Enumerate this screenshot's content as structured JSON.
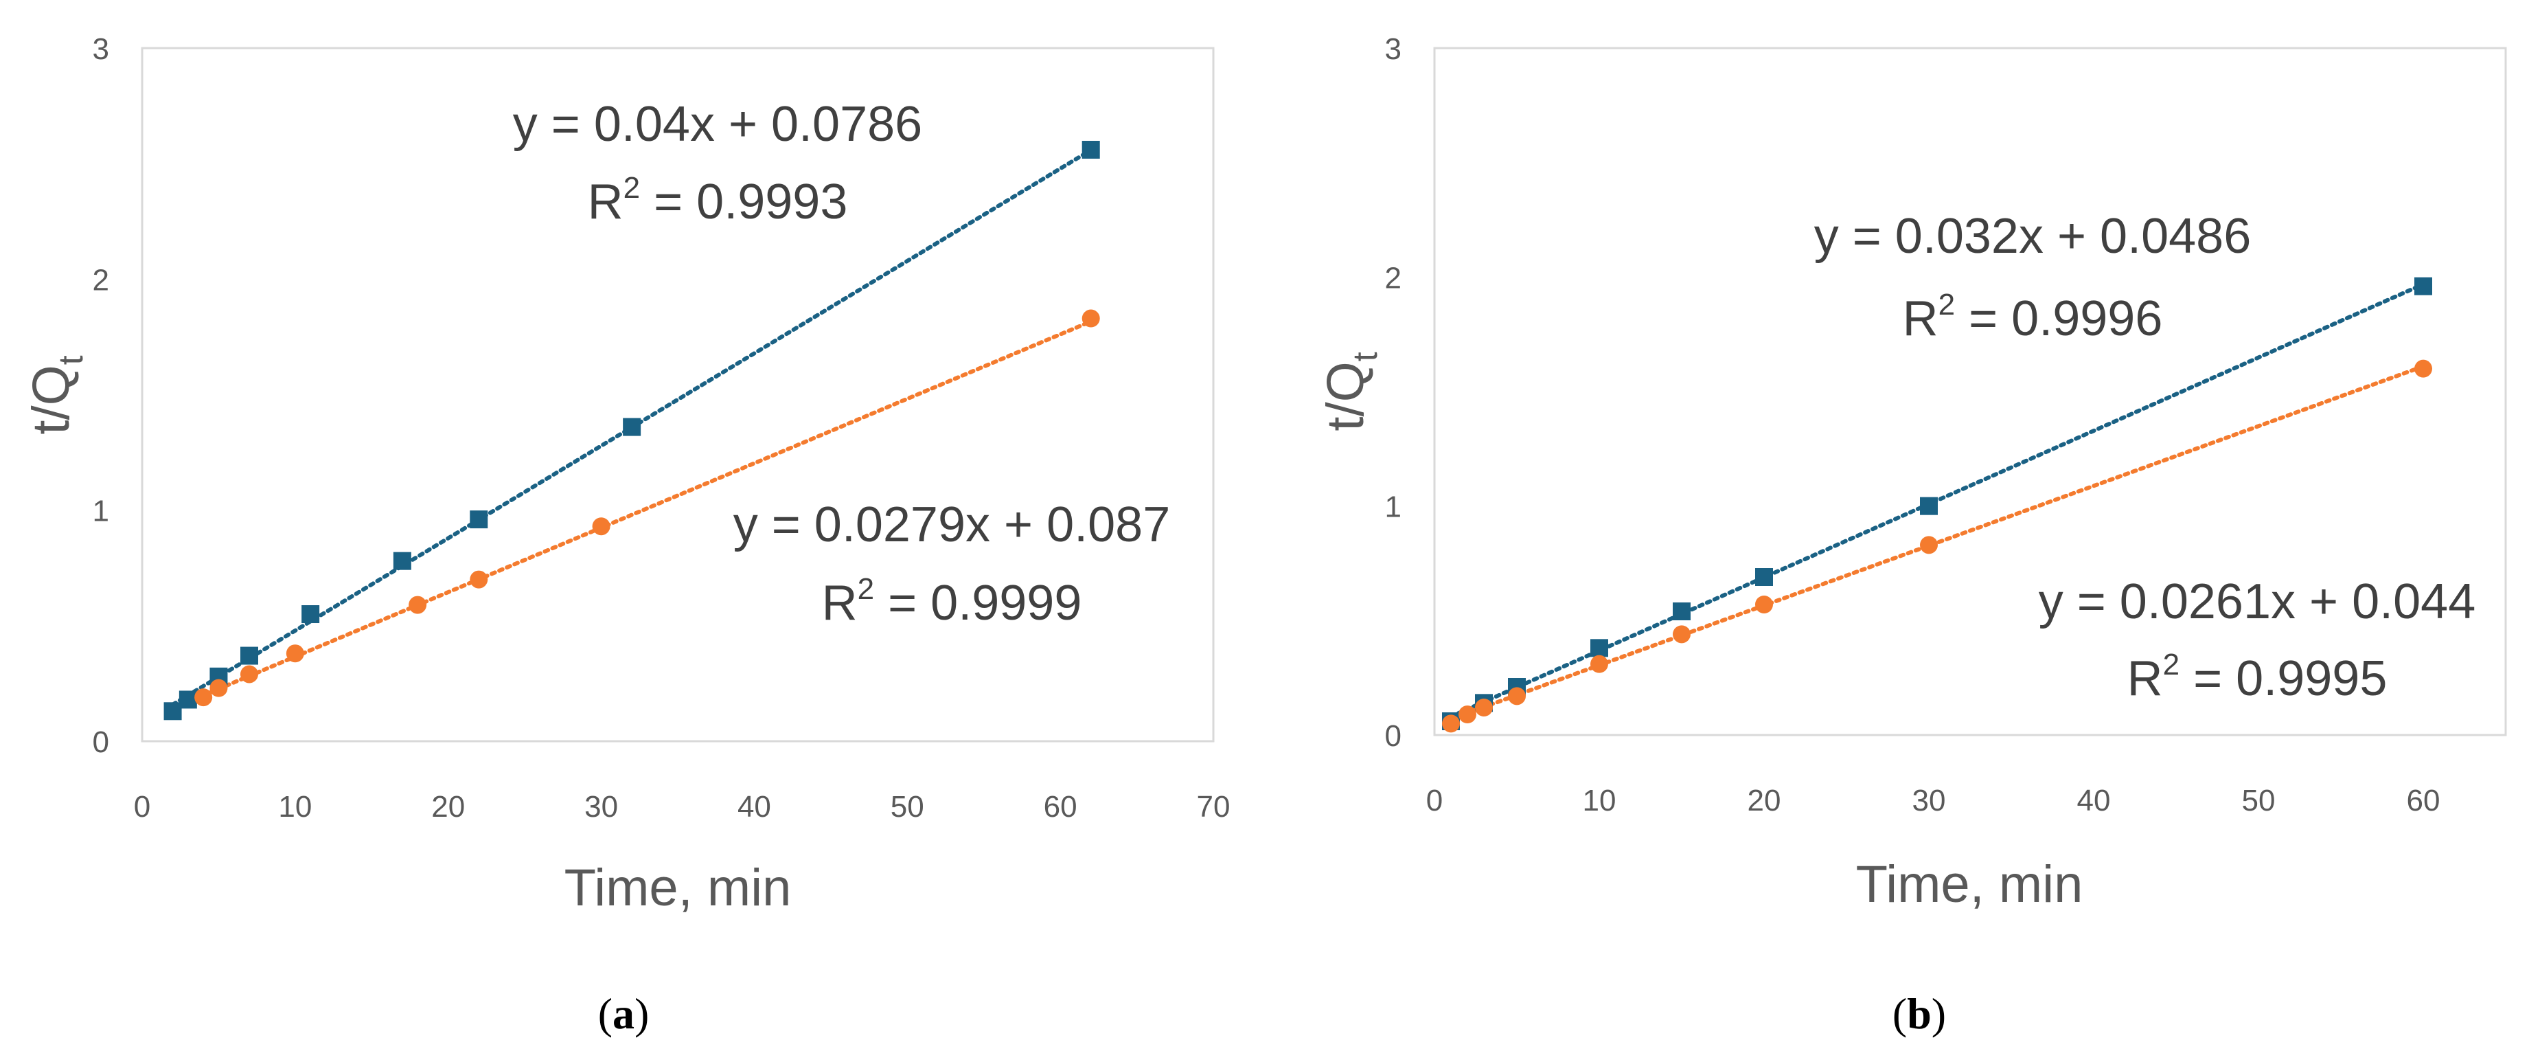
{
  "chart_data": [
    {
      "type": "scatter",
      "panel_label": "a",
      "xlabel": "Time, min",
      "ylabel_main": "t/Q",
      "ylabel_sub": "t",
      "xlim": [
        0,
        70
      ],
      "ylim": [
        0,
        3
      ],
      "xticks": [
        0,
        10,
        20,
        30,
        40,
        50,
        60,
        70
      ],
      "yticks": [
        0,
        1,
        2,
        3
      ],
      "grid": false,
      "series": [
        {
          "name": "series-blue",
          "color": "#1a6184",
          "marker": "square",
          "x": [
            2,
            3,
            5,
            7,
            11,
            17,
            22,
            32,
            62
          ],
          "y": [
            0.13,
            0.18,
            0.28,
            0.37,
            0.55,
            0.78,
            0.96,
            1.36,
            2.56
          ],
          "trendline": {
            "slope": 0.04,
            "intercept": 0.0786,
            "x_range": [
              2,
              62
            ],
            "equation": "y = 0.04x + 0.0786",
            "r2_prefix": "R",
            "r2_sup": "2",
            "r2_value": " = 0.9993"
          }
        },
        {
          "name": "series-orange",
          "color": "#f47b2e",
          "marker": "circle",
          "x": [
            4,
            5,
            7,
            10,
            18,
            22,
            30,
            62
          ],
          "y": [
            0.19,
            0.23,
            0.29,
            0.38,
            0.59,
            0.7,
            0.93,
            1.83
          ],
          "trendline": {
            "slope": 0.0279,
            "intercept": 0.087,
            "x_range": [
              2,
              62
            ],
            "equation": "y = 0.0279x + 0.087",
            "r2_prefix": "R",
            "r2_sup": "2",
            "r2_value": " = 0.9999"
          }
        }
      ]
    },
    {
      "type": "scatter",
      "panel_label": "b",
      "xlabel": "Time, min",
      "ylabel_main": "t/Q",
      "ylabel_sub": "t",
      "xlim": [
        0,
        65
      ],
      "ylim": [
        0,
        3
      ],
      "xticks": [
        0,
        10,
        20,
        30,
        40,
        50,
        60
      ],
      "yticks": [
        0,
        1,
        2,
        3
      ],
      "grid": false,
      "series": [
        {
          "name": "series-blue",
          "color": "#1a6184",
          "marker": "square",
          "x": [
            1,
            3,
            5,
            10,
            15,
            20,
            30,
            60
          ],
          "y": [
            0.06,
            0.14,
            0.21,
            0.38,
            0.54,
            0.69,
            1.0,
            1.96
          ],
          "trendline": {
            "slope": 0.032,
            "intercept": 0.0486,
            "x_range": [
              1,
              60
            ],
            "equation": "y = 0.032x + 0.0486",
            "r2_prefix": "R",
            "r2_sup": "2",
            "r2_value": " = 0.9996"
          }
        },
        {
          "name": "series-orange",
          "color": "#f47b2e",
          "marker": "circle",
          "x": [
            1,
            2,
            3,
            5,
            10,
            15,
            20,
            30,
            60
          ],
          "y": [
            0.05,
            0.09,
            0.12,
            0.17,
            0.31,
            0.44,
            0.57,
            0.83,
            1.6
          ],
          "trendline": {
            "slope": 0.0261,
            "intercept": 0.044,
            "x_range": [
              1,
              60
            ],
            "equation": "y = 0.0261x + 0.044",
            "r2_prefix": "R",
            "r2_sup": "2",
            "r2_value": " = 0.9995"
          }
        }
      ]
    }
  ]
}
